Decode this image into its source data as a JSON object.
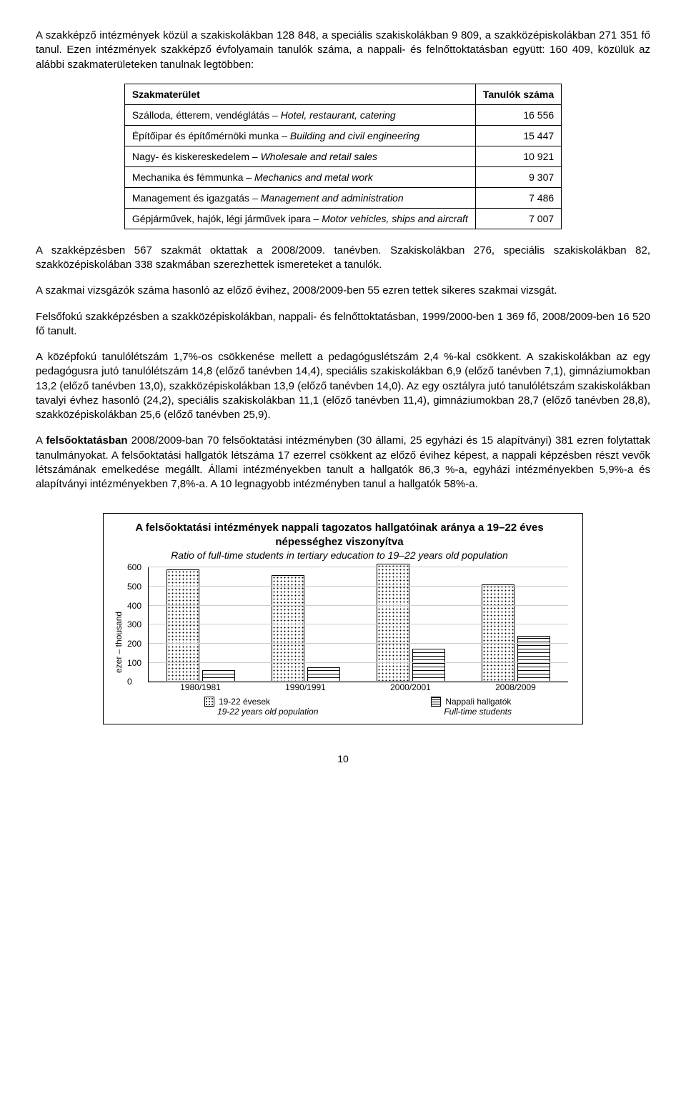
{
  "para1": "A szakképző intézmények közül a szakiskolákban 128 848, a speciális szakiskolákban 9 809, a szakközépiskolákban 271 351 fő tanul. Ezen intézmények szakképző évfolyamain tanulók száma, a nappali- és felnőttoktatásban együtt: 160 409, közülük az alábbi szakmaterületeken tanulnak legtöbben:",
  "table": {
    "header": {
      "col1": "Szakmaterület",
      "col2": "Tanulók száma"
    },
    "rows": [
      {
        "label_hu": "Szálloda, étterem, vendéglátás – ",
        "label_it": "Hotel, restaurant, catering",
        "value": "16 556"
      },
      {
        "label_hu": "Építőipar és építőmérnöki munka – ",
        "label_it": "Building and civil engineering",
        "value": "15 447"
      },
      {
        "label_hu": "Nagy- és kiskereskedelem – ",
        "label_it": "Wholesale and retail sales",
        "value": "10 921"
      },
      {
        "label_hu": "Mechanika és fémmunka – ",
        "label_it": "Mechanics and metal work",
        "value": "9 307"
      },
      {
        "label_hu": "Management és igazgatás – ",
        "label_it": "Management and administration",
        "value": "7 486"
      },
      {
        "label_hu": "Gépjárművek, hajók, légi járművek ipara – ",
        "label_it": "Motor vehicles, ships and aircraft",
        "value": "7 007"
      }
    ]
  },
  "para2": "A szakképzésben 567 szakmát oktattak a 2008/2009. tanévben. Szakiskolákban 276, speciális szakiskolákban 82, szakközépiskolában 338 szakmában szerezhettek ismereteket a tanulók.",
  "para3": "A szakmai vizsgázók száma hasonló az előző évihez, 2008/2009-ben 55 ezren tettek sikeres szakmai vizsgát.",
  "para4": "Felsőfokú szakképzésben a szakközépiskolákban, nappali- és felnőttoktatásban, 1999/2000-ben 1 369 fő, 2008/2009-ben 16 520 fő tanult.",
  "para5": "A középfokú tanulólétszám 1,7%-os csökkenése mellett a pedagóguslétszám 2,4 %-kal csökkent. A szakiskolákban az egy pedagógusra jutó tanulólétszám 14,8 (előző tanévben 14,4), speciális szakiskolákban 6,9 (előző tanévben 7,1), gimnáziumokban 13,2 (előző tanévben 13,0), szakközépiskolákban 13,9 (előző tanévben 14,0). Az egy osztályra jutó tanulólétszám szakiskolákban tavalyi évhez hasonló (24,2), speciális szakiskolákban 11,1 (előző tanévben 11,4), gimnáziumokban 28,7 (előző tanévben 28,8), szakközépiskolákban 25,6 (előző tanévben 25,9).",
  "para6_lead": "A ",
  "para6_bold": "felsőoktatásban",
  "para6_rest": " 2008/2009-ban 70 felsőoktatási intézményben (30 állami, 25 egyházi és 15 alapítványi) 381 ezren folytattak tanulmányokat. A felsőoktatási hallgatók létszáma 17 ezerrel csökkent az előző évihez képest, a nappali képzésben részt vevők létszámának emelkedése megállt. Állami intézményekben tanult a hallgatók 86,3 %-a, egyházi intézményekben 5,9%-a és alapítványi intézményekben 7,8%-a. A 10 legnagyobb intézményben tanul a hallgatók 58%-a.",
  "chart": {
    "title": "A felsőoktatási intézmények nappali tagozatos hallgatóinak aránya a 19–22 éves népességhez viszonyítva",
    "subtitle": "Ratio of full-time students in tertiary education to 19–22 years old population",
    "ylabel": "ezer – thousand",
    "yticks": [
      "0",
      "100",
      "200",
      "300",
      "400",
      "500",
      "600"
    ],
    "ymax": 600,
    "categories": [
      "1980/1981",
      "1990/1991",
      "2000/2001",
      "2008/2009"
    ],
    "series": [
      {
        "name_hu": "19-22 évesek",
        "name_en": "19-22 years old population",
        "pattern": "dotted",
        "values": [
          590,
          560,
          620,
          510
        ]
      },
      {
        "name_hu": "Nappali hallgatók",
        "name_en": "Full-time students",
        "pattern": "lined",
        "values": [
          60,
          75,
          175,
          240
        ]
      }
    ]
  },
  "page_number": "10"
}
